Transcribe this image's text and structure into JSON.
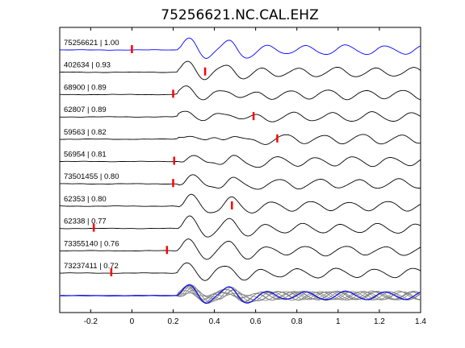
{
  "chart_data": {
    "type": "line",
    "title": "75256621.NC.CAL.EHZ",
    "xlabel": "",
    "ylabel": "",
    "xlim": [
      -0.35,
      1.4
    ],
    "x_ticks": [
      -0.2,
      0,
      0.2,
      0.4,
      0.6,
      0.8,
      1,
      1.2,
      1.4
    ],
    "x_tick_labels": [
      "-0.2",
      "0",
      "0.2",
      "0.4",
      "0.6",
      "0.8",
      "1",
      "1.2",
      "1.4"
    ],
    "grid": false,
    "colors": {
      "reference_trace": "#0000ff",
      "trace": "#000000",
      "stack_trace": "#808080",
      "pick_marker": "#ff0000"
    },
    "traces": [
      {
        "label": "75256621 | 1.00",
        "pick_time": 0.0,
        "reference": true
      },
      {
        "label": "402634 | 0.93",
        "pick_time": 0.355
      },
      {
        "label": "68900 | 0.89",
        "pick_time": 0.2
      },
      {
        "label": "62807 | 0.89",
        "pick_time": 0.59
      },
      {
        "label": "59563 | 0.82",
        "pick_time": 0.705
      },
      {
        "label": "56954 | 0.81",
        "pick_time": 0.205
      },
      {
        "label": "73501455 | 0.80",
        "pick_time": 0.2
      },
      {
        "label": "62353 | 0.80",
        "pick_time": 0.485
      },
      {
        "label": "62338 | 0.77",
        "pick_time": -0.185
      },
      {
        "label": "73355140 | 0.76",
        "pick_time": 0.17
      },
      {
        "label": "73237411 | 0.72",
        "pick_time": -0.1
      }
    ]
  }
}
